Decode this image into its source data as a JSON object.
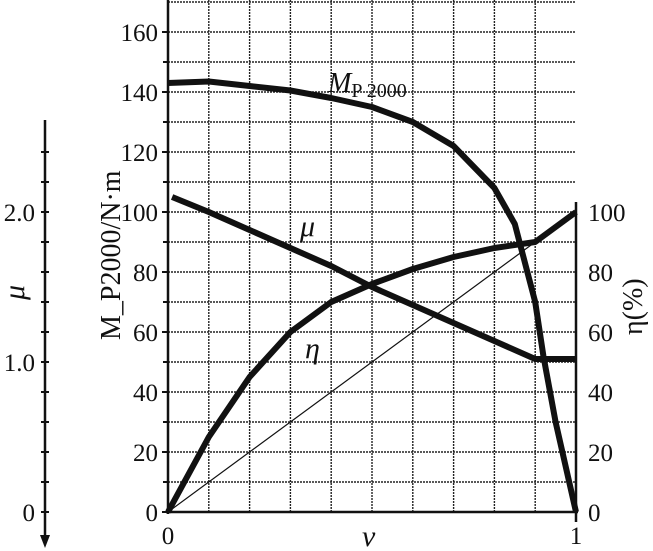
{
  "chart_data": {
    "type": "line",
    "title": "",
    "xlabel": "ν",
    "ylabel_left": "M_P2000/N·m",
    "ylabel_right": "η(%)",
    "ylabel_mu": "μ",
    "xlim": [
      0,
      1
    ],
    "ylim": [
      0,
      170
    ],
    "x_ticks": [
      "0",
      "1"
    ],
    "y_ticks": [
      "0",
      "20",
      "40",
      "60",
      "80",
      "100",
      "120",
      "140",
      "160"
    ],
    "right_ticks": [
      "0",
      "20",
      "40",
      "60",
      "80",
      "100"
    ],
    "mu_ticks": [
      "0",
      "1.0",
      "2.0"
    ],
    "grid": true,
    "series": [
      {
        "name": "M_P2000",
        "label_main": "M",
        "label_sub": "P 2000",
        "axis": "left",
        "x": [
          0,
          0.1,
          0.2,
          0.3,
          0.4,
          0.5,
          0.6,
          0.7,
          0.8,
          0.85,
          0.9,
          0.92,
          0.95,
          1.0
        ],
        "y": [
          143,
          143.5,
          142,
          140.5,
          138,
          135,
          130,
          122,
          108,
          96,
          70,
          52,
          30,
          0
        ]
      },
      {
        "name": "μ",
        "label_main": "μ",
        "axis": "mu",
        "x": [
          0.01,
          0.1,
          0.2,
          0.3,
          0.4,
          0.5,
          0.6,
          0.7,
          0.8,
          0.9,
          1.0
        ],
        "y": [
          2.1,
          2.0,
          1.88,
          1.76,
          1.64,
          1.5,
          1.38,
          1.26,
          1.14,
          1.02,
          1.02
        ]
      },
      {
        "name": "η",
        "label_main": "η",
        "axis": "right",
        "x": [
          0,
          0.1,
          0.2,
          0.3,
          0.4,
          0.5,
          0.6,
          0.7,
          0.8,
          0.9,
          1.0
        ],
        "y": [
          0,
          25,
          45,
          60,
          70,
          76,
          81,
          85,
          88,
          90,
          100
        ]
      },
      {
        "name": "reference",
        "axis": "right",
        "thin": true,
        "x": [
          0,
          1
        ],
        "y": [
          0,
          100
        ]
      }
    ]
  }
}
